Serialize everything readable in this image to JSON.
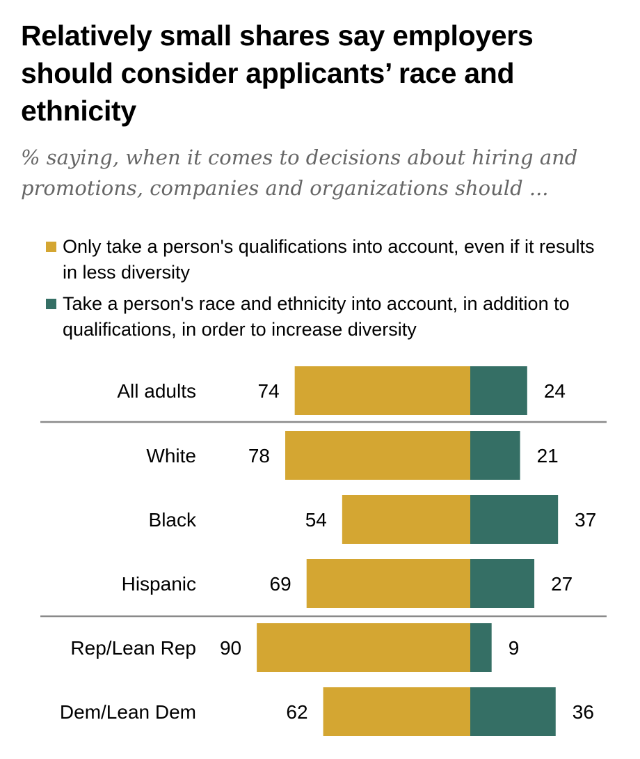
{
  "title": "Relatively small shares say employers should consider applicants’ race and ethnicity",
  "subtitle": "% saying, when it comes to decisions about hiring and promotions, companies and organizations should ...",
  "colors": {
    "qualifications": "#D4A632",
    "race": "#356F65",
    "divider": "#8a8a8a"
  },
  "chart_data": {
    "type": "bar",
    "categories": [
      "All adults",
      "White",
      "Black",
      "Hispanic",
      "Rep/Lean Rep",
      "Dem/Lean Dem"
    ],
    "series": [
      {
        "name": "Only take a person's qualifications into account, even if it results in less diversity",
        "values": [
          74,
          78,
          54,
          69,
          90,
          62
        ]
      },
      {
        "name": "Take a person's race and ethnicity into account, in addition to qualifications, in order to increase diversity",
        "values": [
          24,
          21,
          37,
          27,
          9,
          36
        ]
      }
    ],
    "group_breaks_after": [
      "All adults",
      "Hispanic"
    ],
    "grid": false,
    "legend": "top"
  }
}
